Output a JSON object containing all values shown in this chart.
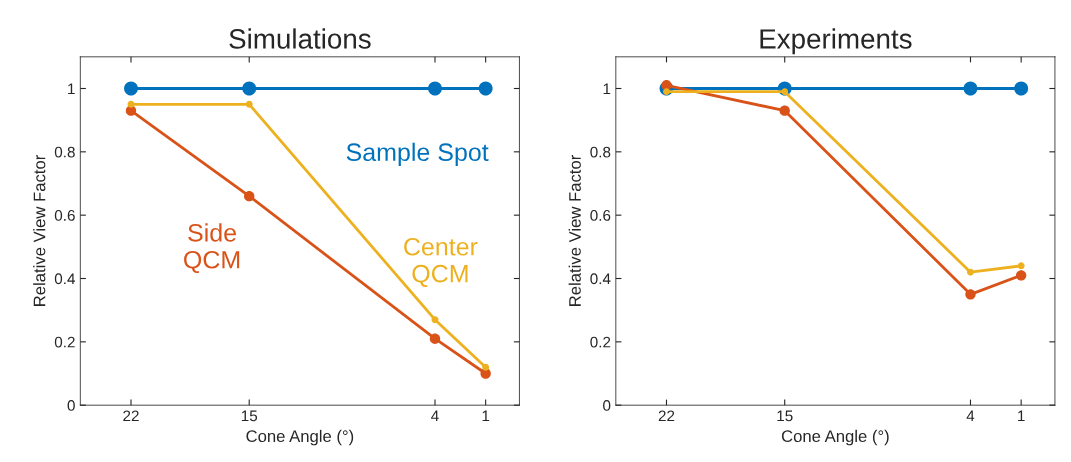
{
  "chart_data": [
    {
      "type": "line",
      "title": "Simulations",
      "xlabel": "Cone Angle (°)",
      "ylabel": "Relative View Factor",
      "x": [
        22,
        15,
        4,
        1
      ],
      "xlim": [
        25,
        -1
      ],
      "xticks": [
        22,
        15,
        4,
        1
      ],
      "ylim": [
        0,
        1.1
      ],
      "yticks": [
        0,
        0.2,
        0.4,
        0.6,
        0.8,
        1
      ],
      "marker": "circle",
      "grid": false,
      "legend": false,
      "series": [
        {
          "name": "Sample Spot",
          "color": "#0072bd",
          "values": [
            1,
            1,
            1,
            1
          ]
        },
        {
          "name": "Side\nQCM",
          "color": "#d95319",
          "values": [
            0.93,
            0.66,
            0.21,
            0.1
          ]
        },
        {
          "name": "Center\nQCM",
          "color": "#edb120",
          "values": [
            0.95,
            0.95,
            0.27,
            0.12
          ]
        }
      ]
    },
    {
      "type": "line",
      "title": "Experiments",
      "xlabel": "Cone Angle (°)",
      "ylabel": "Relative View Factor",
      "x": [
        22,
        15,
        4,
        1
      ],
      "xlim": [
        25,
        -1
      ],
      "xticks": [
        22,
        15,
        4,
        1
      ],
      "ylim": [
        0,
        1.1
      ],
      "yticks": [
        0,
        0.2,
        0.4,
        0.6,
        0.8,
        1
      ],
      "marker": "circle",
      "grid": false,
      "legend": false,
      "series": [
        {
          "color": "#0072bd",
          "values": [
            1,
            1,
            1,
            1
          ]
        },
        {
          "color": "#d95319",
          "values": [
            1.01,
            0.93,
            0.35,
            0.41
          ]
        },
        {
          "color": "#edb120",
          "values": [
            0.99,
            0.99,
            0.42,
            0.44
          ]
        }
      ]
    }
  ]
}
